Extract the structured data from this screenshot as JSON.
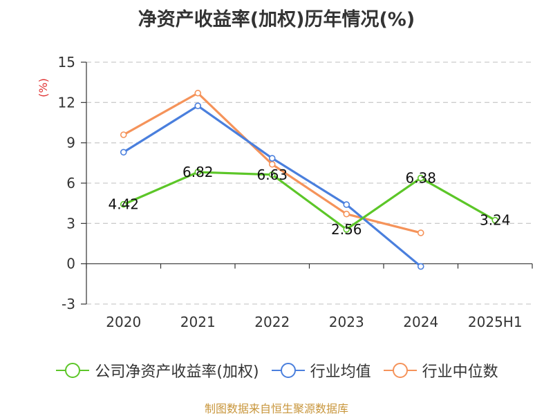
{
  "chart_data": {
    "type": "line",
    "title": "净资产收益率(加权)历年情况(%)",
    "ylabel": "(%)",
    "categories": [
      "2020",
      "2021",
      "2022",
      "2023",
      "2024",
      "2025H1"
    ],
    "yticks": [
      "15",
      "12",
      "9",
      "6",
      "3",
      "0",
      "-3"
    ],
    "ylim": [
      -3,
      15
    ],
    "grid": true,
    "legend_position": "bottom",
    "series": [
      {
        "name": "公司净资产收益率(加权)",
        "color": "#5cc628",
        "values": [
          4.42,
          6.82,
          6.63,
          2.56,
          6.38,
          3.24
        ],
        "labels": [
          "4.42",
          "6.82",
          "6.63",
          "2.56",
          "6.38",
          "3.24"
        ]
      },
      {
        "name": "行业均值",
        "color": "#4a7fdd",
        "values": [
          8.3,
          11.75,
          7.85,
          4.4,
          -0.2,
          null
        ]
      },
      {
        "name": "行业中位数",
        "color": "#f5935a",
        "values": [
          9.6,
          12.7,
          7.4,
          3.7,
          2.3,
          null
        ]
      }
    ]
  },
  "source": "制图数据来自恒生聚源数据库"
}
